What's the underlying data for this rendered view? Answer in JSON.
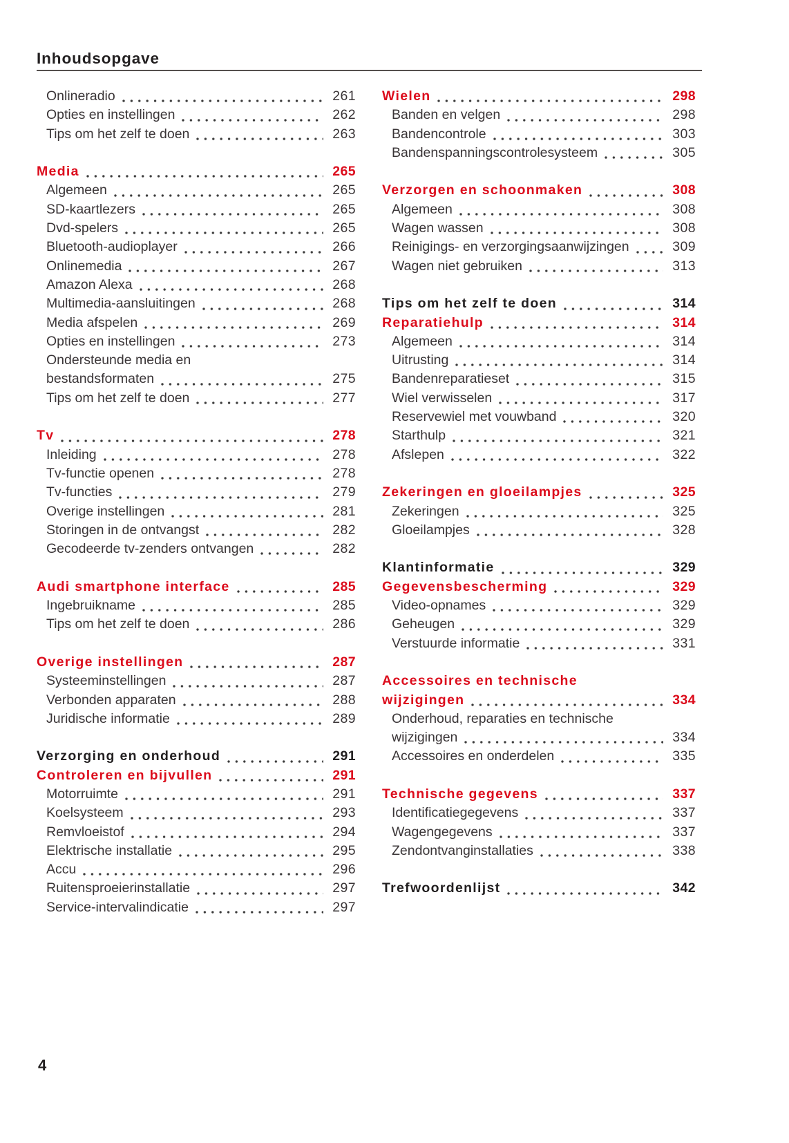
{
  "page": {
    "header_title": "Inhoudsopgave",
    "footer_page_number": "4",
    "accent_color": "#dc0c1c",
    "heading_black_color": "#221f20",
    "text_color": "#3a3537"
  },
  "toc": {
    "columns": [
      {
        "sections": [
          {
            "rows": [
              {
                "label": "Onlineradio",
                "page": "261",
                "style": "item"
              },
              {
                "label": "Opties en instellingen",
                "page": "262",
                "style": "item"
              },
              {
                "label": "Tips om het zelf te doen",
                "page": "263",
                "style": "item"
              }
            ]
          },
          {
            "rows": [
              {
                "label": "Media",
                "page": "265",
                "style": "red"
              },
              {
                "label": "Algemeen",
                "page": "265",
                "style": "item"
              },
              {
                "label": "SD-kaartlezers",
                "page": "265",
                "style": "item"
              },
              {
                "label": "Dvd-spelers",
                "page": "265",
                "style": "item"
              },
              {
                "label": "Bluetooth-audioplayer",
                "page": "266",
                "style": "item"
              },
              {
                "label": "Onlinemedia",
                "page": "267",
                "style": "item"
              },
              {
                "label": "Amazon Alexa",
                "page": "268",
                "style": "item"
              },
              {
                "label": "Multimedia-aansluitingen",
                "page": "268",
                "style": "item"
              },
              {
                "label": "Media afspelen",
                "page": "269",
                "style": "item"
              },
              {
                "label": "Opties en instellingen",
                "page": "273",
                "style": "item"
              },
              {
                "label": "Ondersteunde media en",
                "page": "",
                "style": "item"
              },
              {
                "label": "bestandsformaten",
                "page": "275",
                "style": "item"
              },
              {
                "label": "Tips om het zelf te doen",
                "page": "277",
                "style": "item"
              }
            ]
          },
          {
            "rows": [
              {
                "label": "Tv",
                "page": "278",
                "style": "red"
              },
              {
                "label": "Inleiding",
                "page": "278",
                "style": "item"
              },
              {
                "label": "Tv-functie openen",
                "page": "278",
                "style": "item"
              },
              {
                "label": "Tv-functies",
                "page": "279",
                "style": "item"
              },
              {
                "label": "Overige instellingen",
                "page": "281",
                "style": "item"
              },
              {
                "label": "Storingen in de ontvangst",
                "page": "282",
                "style": "item"
              },
              {
                "label": "Gecodeerde tv-zenders ontvangen",
                "page": "282",
                "style": "item"
              }
            ]
          },
          {
            "rows": [
              {
                "label": "Audi smartphone interface",
                "page": "285",
                "style": "red"
              },
              {
                "label": "Ingebruikname",
                "page": "285",
                "style": "item"
              },
              {
                "label": "Tips om het zelf te doen",
                "page": "286",
                "style": "item"
              }
            ]
          },
          {
            "rows": [
              {
                "label": "Overige instellingen",
                "page": "287",
                "style": "red"
              },
              {
                "label": "Systeeminstellingen",
                "page": "287",
                "style": "item"
              },
              {
                "label": "Verbonden apparaten",
                "page": "288",
                "style": "item"
              },
              {
                "label": "Juridische informatie",
                "page": "289",
                "style": "item"
              }
            ]
          },
          {
            "rows": [
              {
                "label": "Verzorging en onderhoud",
                "page": "291",
                "style": "black"
              },
              {
                "label": "Controleren en bijvullen",
                "page": "291",
                "style": "red"
              },
              {
                "label": "Motorruimte",
                "page": "291",
                "style": "item"
              },
              {
                "label": "Koelsysteem",
                "page": "293",
                "style": "item"
              },
              {
                "label": "Remvloeistof",
                "page": "294",
                "style": "item"
              },
              {
                "label": "Elektrische installatie",
                "page": "295",
                "style": "item"
              },
              {
                "label": "Accu",
                "page": "296",
                "style": "item"
              },
              {
                "label": "Ruitensproeierinstallatie",
                "page": "297",
                "style": "item"
              },
              {
                "label": "Service-intervalindicatie",
                "page": "297",
                "style": "item"
              }
            ]
          }
        ]
      },
      {
        "sections": [
          {
            "rows": [
              {
                "label": "Wielen",
                "page": "298",
                "style": "red"
              },
              {
                "label": "Banden en velgen",
                "page": "298",
                "style": "item"
              },
              {
                "label": "Bandencontrole",
                "page": "303",
                "style": "item"
              },
              {
                "label": "Bandenspanningscontrolesysteem",
                "page": "305",
                "style": "item"
              }
            ]
          },
          {
            "rows": [
              {
                "label": "Verzorgen en schoonmaken",
                "page": "308",
                "style": "red"
              },
              {
                "label": "Algemeen",
                "page": "308",
                "style": "item"
              },
              {
                "label": "Wagen wassen",
                "page": "308",
                "style": "item"
              },
              {
                "label": "Reinigings- en verzorgingsaanwijzingen",
                "page": "309",
                "style": "item"
              },
              {
                "label": "Wagen niet gebruiken",
                "page": "313",
                "style": "item"
              }
            ]
          },
          {
            "rows": [
              {
                "label": "Tips om het zelf te doen",
                "page": "314",
                "style": "black"
              },
              {
                "label": "Reparatiehulp",
                "page": "314",
                "style": "red"
              },
              {
                "label": "Algemeen",
                "page": "314",
                "style": "item"
              },
              {
                "label": "Uitrusting",
                "page": "314",
                "style": "item"
              },
              {
                "label": "Bandenreparatieset",
                "page": "315",
                "style": "item"
              },
              {
                "label": "Wiel verwisselen",
                "page": "317",
                "style": "item"
              },
              {
                "label": "Reservewiel met vouwband",
                "page": "320",
                "style": "item"
              },
              {
                "label": "Starthulp",
                "page": "321",
                "style": "item"
              },
              {
                "label": "Afslepen",
                "page": "322",
                "style": "item"
              }
            ]
          },
          {
            "rows": [
              {
                "label": "Zekeringen en gloeilampjes",
                "page": "325",
                "style": "red"
              },
              {
                "label": "Zekeringen",
                "page": "325",
                "style": "item"
              },
              {
                "label": "Gloeilampjes",
                "page": "328",
                "style": "item"
              }
            ]
          },
          {
            "rows": [
              {
                "label": "Klantinformatie",
                "page": "329",
                "style": "black"
              },
              {
                "label": "Gegevensbescherming",
                "page": "329",
                "style": "red"
              },
              {
                "label": "Video-opnames",
                "page": "329",
                "style": "item"
              },
              {
                "label": "Geheugen",
                "page": "329",
                "style": "item"
              },
              {
                "label": "Verstuurde informatie",
                "page": "331",
                "style": "item"
              }
            ]
          },
          {
            "rows": [
              {
                "label": "Accessoires en technische",
                "page": "",
                "style": "red"
              },
              {
                "label": "wijzigingen",
                "page": "334",
                "style": "red"
              },
              {
                "label": "Onderhoud, reparaties en technische",
                "page": "",
                "style": "item"
              },
              {
                "label": "wijzigingen",
                "page": "334",
                "style": "item"
              },
              {
                "label": "Accessoires en onderdelen",
                "page": "335",
                "style": "item"
              }
            ]
          },
          {
            "rows": [
              {
                "label": "Technische gegevens",
                "page": "337",
                "style": "red"
              },
              {
                "label": "Identificatiegegevens",
                "page": "337",
                "style": "item"
              },
              {
                "label": "Wagengegevens",
                "page": "337",
                "style": "item"
              },
              {
                "label": "Zendontvanginstallaties",
                "page": "338",
                "style": "item"
              }
            ]
          },
          {
            "rows": [
              {
                "label": "Trefwoordenlijst",
                "page": "342",
                "style": "black"
              }
            ]
          }
        ]
      }
    ]
  }
}
